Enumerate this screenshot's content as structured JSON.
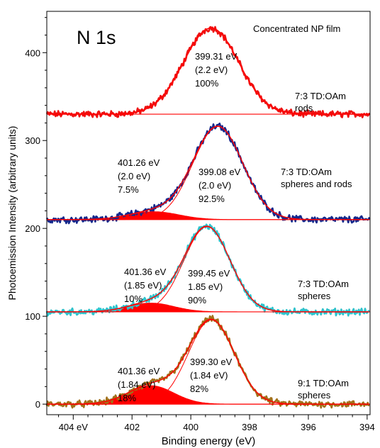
{
  "chart_data": {
    "type": "line",
    "title": "N 1s",
    "subtitle": "Concentrated NP film",
    "xlabel": "Binding energy (eV)",
    "ylabel": "Photoemission Intensity (arbitrary units)",
    "xlim": [
      404.9,
      393.9
    ],
    "ylim": [
      -12,
      447
    ],
    "x_reversed": true,
    "grid": false,
    "x_ticks": [
      404,
      402,
      400,
      398,
      396,
      394
    ],
    "x_tick_labels": [
      "404 eV",
      "402",
      "400",
      "398",
      "396",
      "394"
    ],
    "y_ticks": [
      0,
      100,
      200,
      300,
      400
    ],
    "y_tick_labels": [
      "0",
      "100",
      "200",
      "300",
      "400"
    ],
    "colors": {
      "rods": "#ee1111",
      "spheres_and_rods": "#14288c",
      "spheres_73": "#2ec3cc",
      "spheres_91": "#a2701a",
      "fit": "#ff0000",
      "fill": "#ff0000"
    },
    "spectra": [
      {
        "sample": [
          "7:3 TD:OAm",
          "rods"
        ],
        "baseline": 330,
        "color_key": "rods",
        "peaks": [
          {
            "center": 399.31,
            "fwhm": 2.2,
            "amplitude": 98,
            "label": [
              "399.31 eV",
              "(2.2 eV)",
              "100%"
            ],
            "filled": false
          }
        ]
      },
      {
        "sample": [
          "7:3 TD:OAm",
          "spheres and rods"
        ],
        "baseline": 210,
        "color_key": "spheres_and_rods",
        "peaks": [
          {
            "center": 399.08,
            "fwhm": 2.0,
            "amplitude": 106,
            "label": [
              "399.08 eV",
              "(2.0 eV)",
              "92.5%"
            ],
            "filled": false
          },
          {
            "center": 401.26,
            "fwhm": 2.0,
            "amplitude": 9,
            "label": [
              "401.26 eV",
              "(2.0 eV)",
              "7.5%"
            ],
            "filled": true
          }
        ]
      },
      {
        "sample": [
          "7:3 TD:OAm",
          "spheres"
        ],
        "baseline": 105,
        "color_key": "spheres_73",
        "peaks": [
          {
            "center": 399.45,
            "fwhm": 1.85,
            "amplitude": 97,
            "label": [
              "399.45 eV",
              "1.85 eV)",
              "90%"
            ],
            "filled": false
          },
          {
            "center": 401.36,
            "fwhm": 1.85,
            "amplitude": 10,
            "label": [
              "401.36 eV",
              "(1.85 eV)",
              "10%"
            ],
            "filled": true
          }
        ]
      },
      {
        "sample": [
          "9:1 TD:OAm",
          "spheres"
        ],
        "baseline": 0,
        "color_key": "spheres_91",
        "peaks": [
          {
            "center": 399.3,
            "fwhm": 1.84,
            "amplitude": 96,
            "label": [
              "399.30 eV",
              "(1.84 eV)",
              "82%"
            ],
            "filled": false
          },
          {
            "center": 401.36,
            "fwhm": 1.84,
            "amplitude": 21,
            "label": [
              "401.36 eV",
              "(1.84 eV)",
              "18%"
            ],
            "filled": true
          }
        ]
      }
    ]
  }
}
